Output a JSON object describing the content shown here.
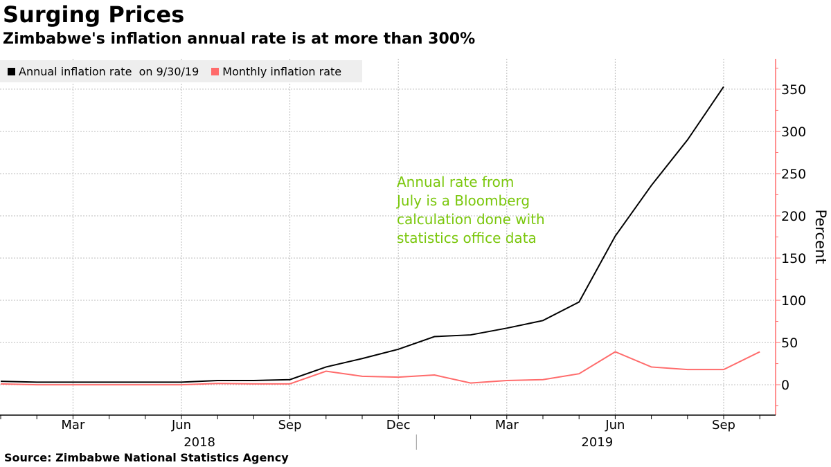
{
  "title": "Surging Prices",
  "subtitle": "Zimbabwe's inflation annual rate is at more than 300%",
  "source": "Source:  Zimbabwe National Statistics Agency",
  "chart_data": {
    "type": "line",
    "x": [
      "2018-01",
      "2018-02",
      "2018-03",
      "2018-04",
      "2018-05",
      "2018-06",
      "2018-07",
      "2018-08",
      "2018-09",
      "2018-10",
      "2018-11",
      "2018-12",
      "2019-01",
      "2019-02",
      "2019-03",
      "2019-04",
      "2019-05",
      "2019-06",
      "2019-07",
      "2019-08",
      "2019-09",
      "2019-10"
    ],
    "series": [
      {
        "name": "Annual inflation rate  on 9/30/19",
        "color": "#000000",
        "values": [
          4,
          3,
          3,
          3,
          3,
          3,
          5,
          5,
          6,
          21,
          31,
          42,
          57,
          59,
          67,
          76,
          98,
          176,
          236,
          290,
          353,
          null
        ]
      },
      {
        "name": "Monthly inflation rate",
        "color": "#ff6b6b",
        "values": [
          1,
          0,
          0,
          0,
          0,
          0,
          1.5,
          1,
          1,
          16,
          10,
          9,
          11.5,
          2,
          5,
          6,
          13,
          39,
          21,
          18,
          18,
          39
        ]
      }
    ],
    "ylabel": "Percent",
    "ylim": [
      -36,
      386
    ],
    "yticks": [
      "0",
      "50",
      "100",
      "150",
      "200",
      "250",
      "300",
      "350"
    ],
    "xticks": [
      {
        "label": "Mar",
        "i": 2
      },
      {
        "label": "Jun",
        "i": 5
      },
      {
        "label": "Sep",
        "i": 8
      },
      {
        "label": "Dec",
        "i": 11
      },
      {
        "label": "Mar",
        "i": 14
      },
      {
        "label": "Jun",
        "i": 17
      },
      {
        "label": "Sep",
        "i": 20
      }
    ],
    "years": [
      {
        "label": "2018",
        "i": 5.5
      },
      {
        "label": "2019",
        "i": 16.5
      }
    ],
    "annotation": "Annual rate from\nJuly is a Bloomberg\ncalculation done with\nstatistics office data",
    "annotation_color": "#7ac70c",
    "axis_color": "#ff6b6b",
    "grid": true,
    "legend": "top-left"
  }
}
